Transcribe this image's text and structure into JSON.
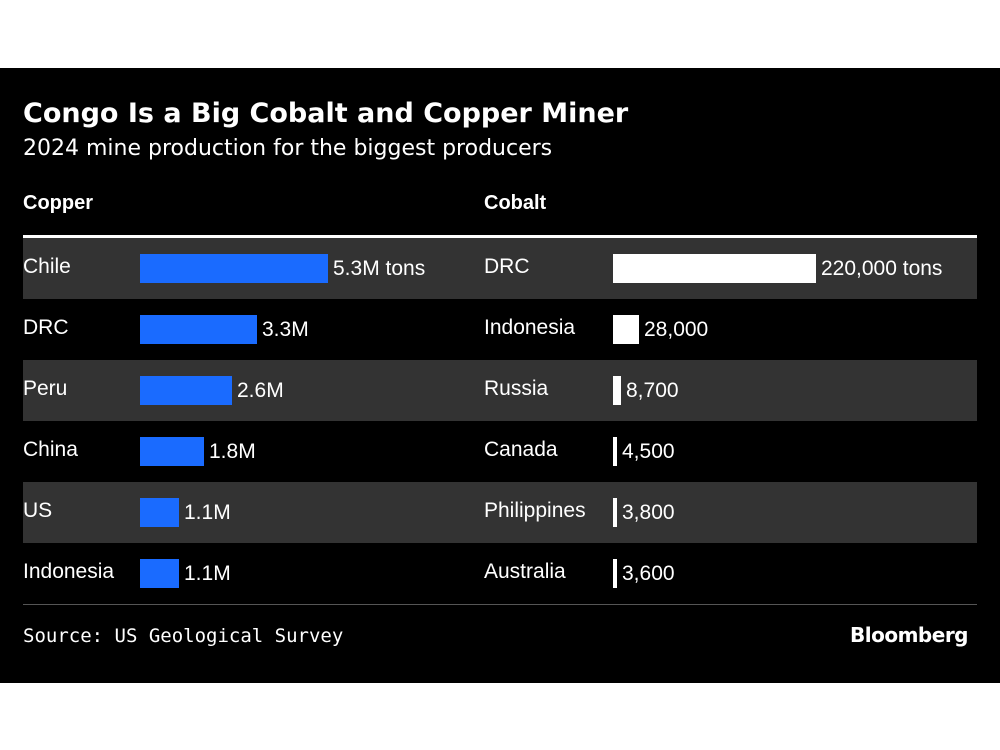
{
  "header": {
    "title": "Congo Is a Big Cobalt and Copper Miner",
    "subtitle": "2024 mine production for the biggest producers"
  },
  "footer": {
    "source": "Source: US Geological Survey",
    "logo": "Bloomberg"
  },
  "colors": {
    "background": "#000000",
    "stripe": "#333333",
    "copper_bar": "#1a6bff",
    "cobalt_bar": "#ffffff",
    "text": "#ffffff"
  },
  "chart_data": [
    {
      "type": "bar",
      "orientation": "horizontal",
      "title": "Copper",
      "categories": [
        "Chile",
        "DRC",
        "Peru",
        "China",
        "US",
        "Indonesia"
      ],
      "values": [
        5.3,
        3.3,
        2.6,
        1.8,
        1.1,
        1.1
      ],
      "unit": "million tons",
      "value_labels": [
        "5.3M tons",
        "3.3M",
        "2.6M",
        "1.8M",
        "1.1M",
        "1.1M"
      ],
      "grid": false,
      "legend": false
    },
    {
      "type": "bar",
      "orientation": "horizontal",
      "title": "Cobalt",
      "categories": [
        "DRC",
        "Indonesia",
        "Russia",
        "Canada",
        "Philippines",
        "Australia"
      ],
      "values": [
        220000,
        28000,
        8700,
        4500,
        3800,
        3600
      ],
      "unit": "tons",
      "value_labels": [
        "220,000 tons",
        "28,000",
        "8,700",
        "4,500",
        "3,800",
        "3,600"
      ],
      "grid": false,
      "legend": false
    }
  ]
}
